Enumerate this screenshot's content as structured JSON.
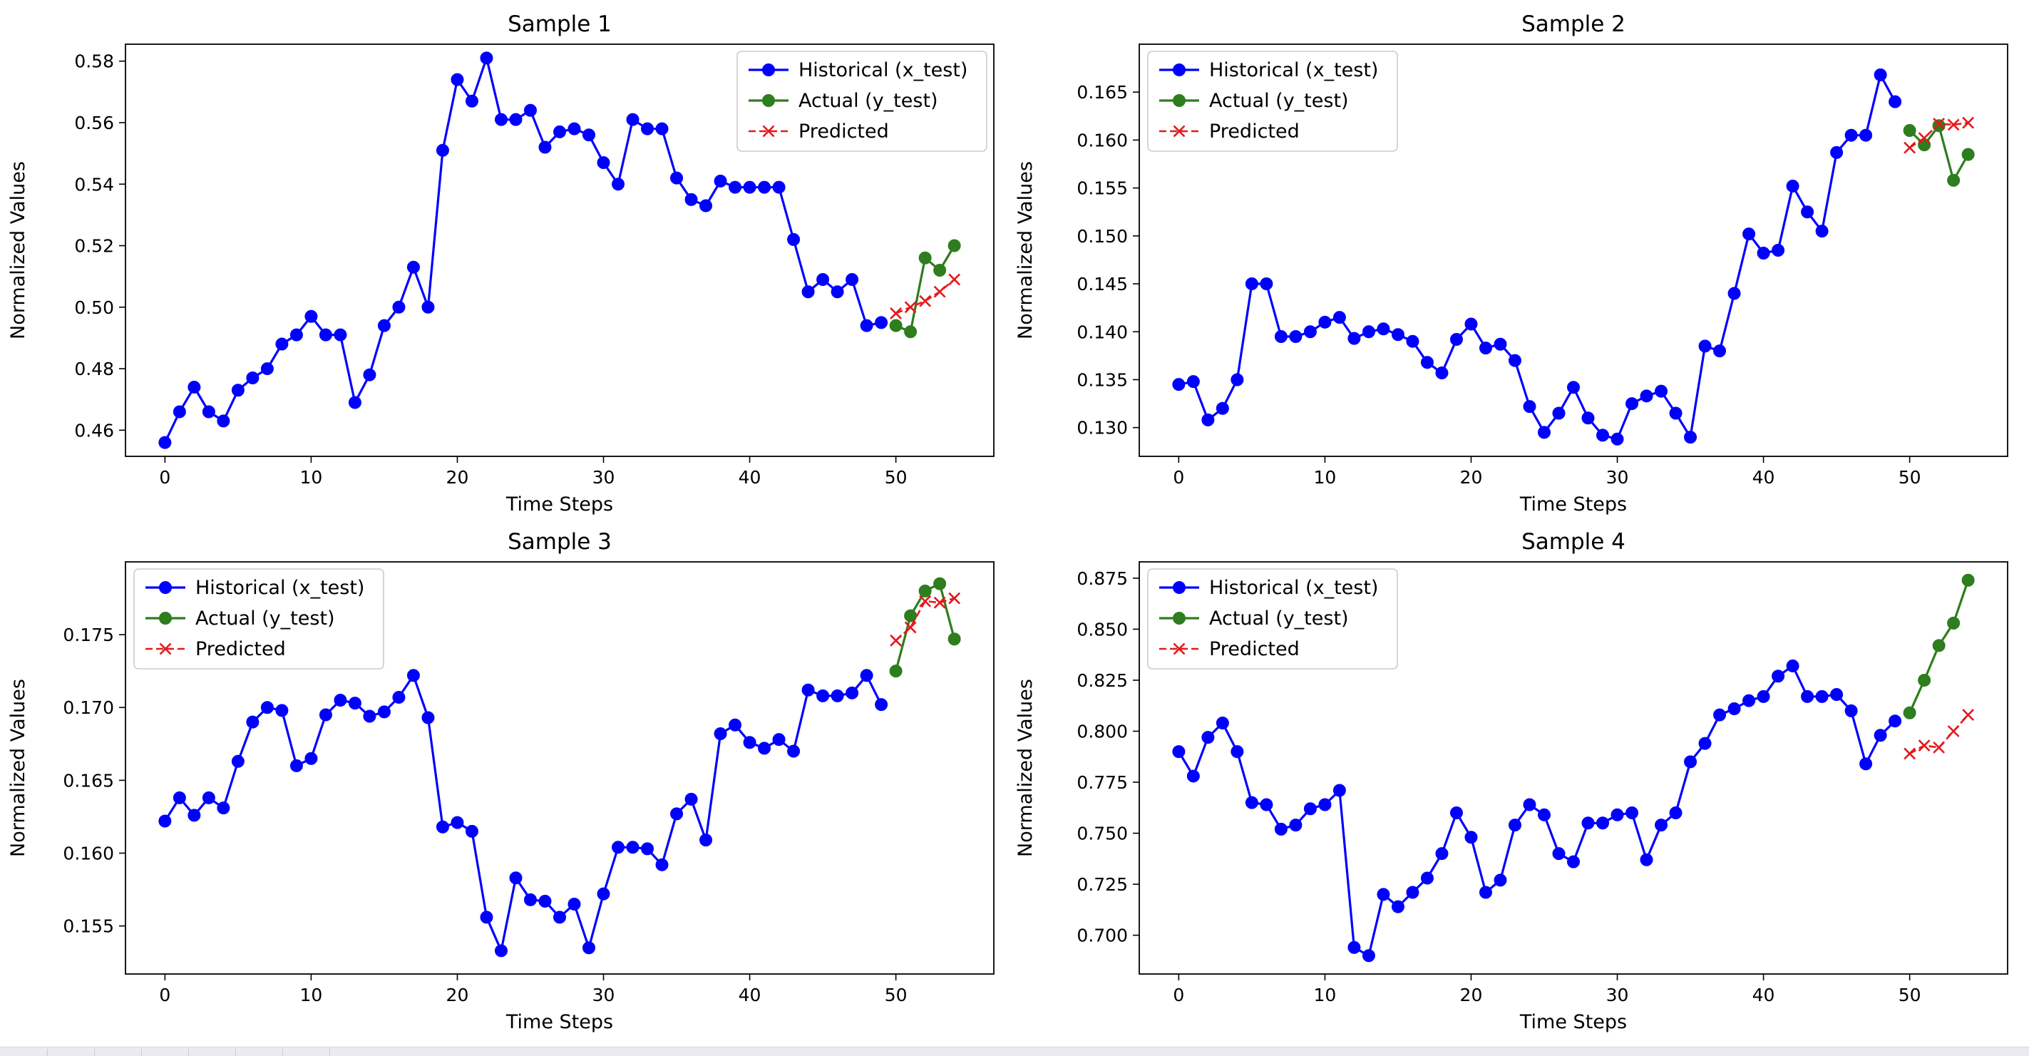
{
  "colors": {
    "historical": "#0000ff",
    "actual": "#2e7d1e",
    "predicted": "#e31a1c",
    "axes": "#000000",
    "background": "#ffffff"
  },
  "legend_labels": {
    "historical": "Historical (x_test)",
    "actual": "Actual (y_test)",
    "predicted": "Predicted"
  },
  "chart_data": [
    {
      "type": "line",
      "title": "Sample 1",
      "xlabel": "Time Steps",
      "ylabel": "Normalized Values",
      "xlim": [
        -2.7,
        56.7
      ],
      "ylim": [
        0.4515,
        0.5855
      ],
      "xticks": [
        0,
        10,
        20,
        30,
        40,
        50
      ],
      "yticks": [
        0.46,
        0.48,
        0.5,
        0.52,
        0.54,
        0.56,
        0.58
      ],
      "tick_decimals": 2,
      "grid": false,
      "legend": "upper-right",
      "series": [
        {
          "name": "Historical (x_test)",
          "x_start": 0,
          "marker": "circle",
          "values": [
            0.456,
            0.466,
            0.474,
            0.466,
            0.463,
            0.473,
            0.477,
            0.48,
            0.488,
            0.491,
            0.497,
            0.491,
            0.491,
            0.469,
            0.478,
            0.494,
            0.5,
            0.513,
            0.5,
            0.551,
            0.574,
            0.567,
            0.581,
            0.561,
            0.561,
            0.564,
            0.552,
            0.557,
            0.558,
            0.556,
            0.547,
            0.54,
            0.561,
            0.558,
            0.558,
            0.542,
            0.535,
            0.533,
            0.541,
            0.539,
            0.539,
            0.539,
            0.539,
            0.522,
            0.505,
            0.509,
            0.505,
            0.509,
            0.494,
            0.495
          ]
        },
        {
          "name": "Actual (y_test)",
          "x_start": 50,
          "marker": "circle",
          "values": [
            0.494,
            0.492,
            0.516,
            0.512,
            0.52
          ]
        },
        {
          "name": "Predicted",
          "x_start": 50,
          "marker": "x",
          "dashed": true,
          "values": [
            0.498,
            0.5,
            0.502,
            0.505,
            0.509
          ]
        }
      ]
    },
    {
      "type": "line",
      "title": "Sample 2",
      "xlabel": "Time Steps",
      "ylabel": "Normalized Values",
      "xlim": [
        -2.7,
        56.7
      ],
      "ylim": [
        0.127,
        0.17
      ],
      "xticks": [
        0,
        10,
        20,
        30,
        40,
        50
      ],
      "yticks": [
        0.13,
        0.135,
        0.14,
        0.145,
        0.15,
        0.155,
        0.16,
        0.165
      ],
      "tick_decimals": 3,
      "grid": false,
      "legend": "upper-left",
      "series": [
        {
          "name": "Historical (x_test)",
          "x_start": 0,
          "marker": "circle",
          "values": [
            0.1345,
            0.1348,
            0.1308,
            0.132,
            0.135,
            0.145,
            0.145,
            0.1395,
            0.1395,
            0.14,
            0.141,
            0.1415,
            0.1393,
            0.14,
            0.1403,
            0.1397,
            0.139,
            0.1368,
            0.1357,
            0.1392,
            0.1408,
            0.1383,
            0.1387,
            0.137,
            0.1322,
            0.1295,
            0.1315,
            0.1342,
            0.131,
            0.1292,
            0.1288,
            0.1325,
            0.1333,
            0.1338,
            0.1315,
            0.129,
            0.1385,
            0.138,
            0.144,
            0.1502,
            0.1482,
            0.1485,
            0.1552,
            0.1525,
            0.1505,
            0.1587,
            0.1605,
            0.1605,
            0.1668,
            0.164
          ]
        },
        {
          "name": "Actual (y_test)",
          "x_start": 50,
          "marker": "circle",
          "values": [
            0.161,
            0.1595,
            0.1615,
            0.1558,
            0.1585
          ]
        },
        {
          "name": "Predicted",
          "x_start": 50,
          "marker": "x",
          "dashed": true,
          "values": [
            0.1592,
            0.1602,
            0.1617,
            0.1616,
            0.1618
          ]
        }
      ]
    },
    {
      "type": "line",
      "title": "Sample 3",
      "xlabel": "Time Steps",
      "ylabel": "Normalized Values",
      "xlim": [
        -2.7,
        56.7
      ],
      "ylim": [
        0.1517,
        0.18
      ],
      "xticks": [
        0,
        10,
        20,
        30,
        40,
        50
      ],
      "yticks": [
        0.155,
        0.16,
        0.165,
        0.17,
        0.175
      ],
      "tick_decimals": 3,
      "grid": false,
      "legend": "upper-left",
      "series": [
        {
          "name": "Historical (x_test)",
          "x_start": 0,
          "marker": "circle",
          "values": [
            0.1622,
            0.1638,
            0.1626,
            0.1638,
            0.1631,
            0.1663,
            0.169,
            0.17,
            0.1698,
            0.166,
            0.1665,
            0.1695,
            0.1705,
            0.1703,
            0.1694,
            0.1697,
            0.1707,
            0.1722,
            0.1693,
            0.1618,
            0.1621,
            0.1615,
            0.1556,
            0.1533,
            0.1583,
            0.1568,
            0.1567,
            0.1556,
            0.1565,
            0.1535,
            0.1572,
            0.1604,
            0.1604,
            0.1603,
            0.1592,
            0.1627,
            0.1637,
            0.1609,
            0.1682,
            0.1688,
            0.1676,
            0.1672,
            0.1678,
            0.167,
            0.1712,
            0.1708,
            0.1708,
            0.171,
            0.1722,
            0.1702
          ]
        },
        {
          "name": "Actual (y_test)",
          "x_start": 50,
          "marker": "circle",
          "values": [
            0.1725,
            0.1763,
            0.178,
            0.1785,
            0.1747
          ]
        },
        {
          "name": "Predicted",
          "x_start": 50,
          "marker": "x",
          "dashed": true,
          "values": [
            0.1746,
            0.1755,
            0.1773,
            0.1772,
            0.1775
          ]
        }
      ]
    },
    {
      "type": "line",
      "title": "Sample 4",
      "xlabel": "Time Steps",
      "ylabel": "Normalized Values",
      "xlim": [
        -2.7,
        56.7
      ],
      "ylim": [
        0.681,
        0.883
      ],
      "xticks": [
        0,
        10,
        20,
        30,
        40,
        50
      ],
      "yticks": [
        0.7,
        0.725,
        0.75,
        0.775,
        0.8,
        0.825,
        0.85,
        0.875
      ],
      "tick_decimals": 3,
      "grid": false,
      "legend": "upper-left",
      "series": [
        {
          "name": "Historical (x_test)",
          "x_start": 0,
          "marker": "circle",
          "values": [
            0.79,
            0.778,
            0.797,
            0.804,
            0.79,
            0.765,
            0.764,
            0.752,
            0.754,
            0.762,
            0.764,
            0.771,
            0.694,
            0.69,
            0.72,
            0.714,
            0.721,
            0.728,
            0.74,
            0.76,
            0.748,
            0.721,
            0.727,
            0.754,
            0.764,
            0.759,
            0.74,
            0.736,
            0.755,
            0.755,
            0.759,
            0.76,
            0.737,
            0.754,
            0.76,
            0.785,
            0.794,
            0.808,
            0.811,
            0.815,
            0.817,
            0.827,
            0.832,
            0.817,
            0.817,
            0.818,
            0.81,
            0.784,
            0.798,
            0.805
          ]
        },
        {
          "name": "Actual (y_test)",
          "x_start": 50,
          "marker": "circle",
          "values": [
            0.809,
            0.825,
            0.842,
            0.853,
            0.874
          ]
        },
        {
          "name": "Predicted",
          "x_start": 50,
          "marker": "x",
          "dashed": true,
          "values": [
            0.789,
            0.793,
            0.792,
            0.8,
            0.808
          ]
        }
      ]
    }
  ]
}
